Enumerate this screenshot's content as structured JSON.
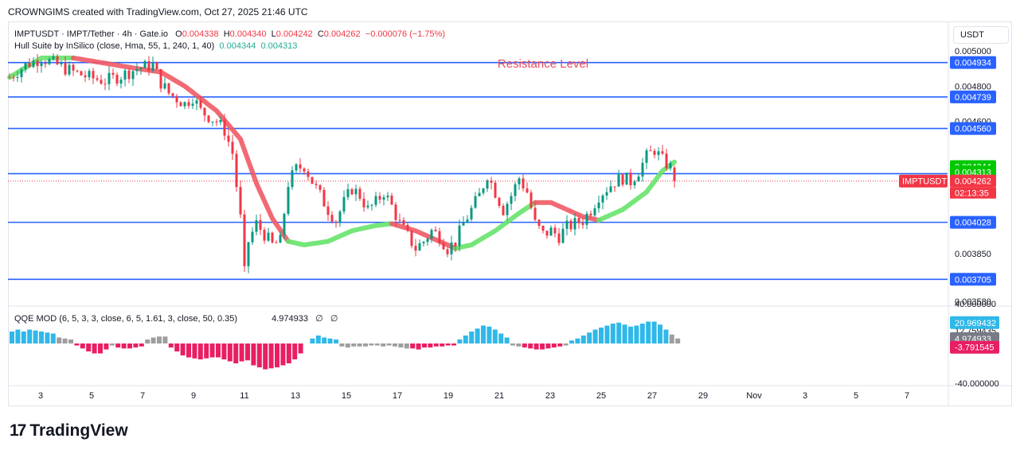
{
  "header": {
    "created_by": "CROWNGIMS created with TradingView.com, Oct 27, 2025 21:46 UTC"
  },
  "legend": {
    "symbol_line": "IMPTUSDT · IMPT/Tether · 4h · Gate.io",
    "o_label": "O",
    "o_value": "0.004338",
    "h_label": "H",
    "h_value": "0.004340",
    "l_label": "L",
    "l_value": "0.004242",
    "c_label": "C",
    "c_value": "0.004262",
    "change": "−0.000076 (−1.75%)",
    "indicator": "Hull Suite by InSilico (close, Hma, 55, 1, 240, 1, 40)",
    "hull_value_1": "0.004344",
    "hull_value_2": "0.004313"
  },
  "qqe_legend": {
    "title": "QQE MOD (6, 5, 3, 3, close, 6, 5, 1.61, 3, close, 50, 0.35)",
    "value": "4.974933",
    "na1": "∅",
    "na2": "∅"
  },
  "price_axis": {
    "unit": "USDT"
  },
  "annotations": {
    "resistance_text": "Resistance Level"
  },
  "footer": {
    "brand": "TradingView"
  },
  "colors": {
    "level_line": "#2962ff",
    "bull": "#089981",
    "bear": "#f23645",
    "hull_up": "#66e36a",
    "hull_down": "#f05a65",
    "qqe_up": "#2fb8e9",
    "qqe_down": "#e91e63",
    "qqe_neutral": "#9e9e9e",
    "resistance_text": "#e84a5f"
  },
  "chart_data": {
    "type": "candlestick",
    "symbol": "IMPTUSDT",
    "timeframe": "4h",
    "y_axis": {
      "ylim": [
        0.00358,
        0.00502
      ],
      "tick_labels": [
        "0.005000",
        "0.004800",
        "0.004600",
        "0.003850",
        "0.003580"
      ],
      "tick_values": [
        0.005,
        0.0048,
        0.0046,
        0.00385,
        0.00358
      ]
    },
    "x_axis": {
      "tick_labels": [
        "3",
        "5",
        "7",
        "9",
        "11",
        "13",
        "15",
        "17",
        "19",
        "21",
        "23",
        "25",
        "27",
        "29",
        "Nov",
        "3",
        "5",
        "7"
      ]
    },
    "horizontal_levels": [
      {
        "value": 0.004934,
        "label": "0.004934"
      },
      {
        "value": 0.004739,
        "label": "0.004739"
      },
      {
        "value": 0.00456,
        "label": "0.004560"
      },
      {
        "value": 0.004304,
        "label": "0.004304"
      },
      {
        "value": 0.004028,
        "label": "0.004028"
      },
      {
        "value": 0.003705,
        "label": "0.003705"
      }
    ],
    "price_tags": [
      {
        "value": 0.004344,
        "label": "0.004344",
        "color": "#00c800"
      },
      {
        "value": 0.004313,
        "label": "0.004313",
        "color": "#00c800"
      },
      {
        "value": 0.004262,
        "label": "0.004262",
        "color": "#f23645"
      }
    ],
    "last_price_tag": {
      "symbol": "IMPTUSDT",
      "value": 0.004262,
      "label": "0.004262",
      "countdown": "02:13:35"
    },
    "price_path": [
      [
        0,
        0.00485
      ],
      [
        2,
        0.00492
      ],
      [
        4,
        0.00496
      ],
      [
        6,
        0.00492
      ],
      [
        8,
        0.00488
      ],
      [
        10,
        0.00485
      ],
      [
        12,
        0.00483
      ],
      [
        14,
        0.00486
      ],
      [
        16,
        0.0049
      ],
      [
        18,
        0.00492
      ],
      [
        19,
        0.00482
      ],
      [
        20,
        0.00476
      ],
      [
        22,
        0.0047
      ],
      [
        23,
        0.00474
      ],
      [
        24,
        0.00466
      ],
      [
        26,
        0.0046
      ],
      [
        27,
        0.00455
      ],
      [
        28,
        0.00442
      ],
      [
        29,
        0.00405
      ],
      [
        29.5,
        0.00374
      ],
      [
        30,
        0.00392
      ],
      [
        31,
        0.00402
      ],
      [
        32,
        0.00396
      ],
      [
        33,
        0.0039
      ],
      [
        34,
        0.00392
      ],
      [
        35,
        0.00425
      ],
      [
        36,
        0.00433
      ],
      [
        37,
        0.00435
      ],
      [
        38,
        0.00426
      ],
      [
        39,
        0.00418
      ],
      [
        40,
        0.0041
      ],
      [
        41,
        0.00404
      ],
      [
        42,
        0.00414
      ],
      [
        43,
        0.00422
      ],
      [
        44,
        0.00418
      ],
      [
        45,
        0.0041
      ],
      [
        46,
        0.00414
      ],
      [
        47,
        0.0042
      ],
      [
        48,
        0.00412
      ],
      [
        49,
        0.00402
      ],
      [
        50,
        0.00395
      ],
      [
        51,
        0.00388
      ],
      [
        52,
        0.00392
      ],
      [
        53,
        0.00398
      ],
      [
        54,
        0.00395
      ],
      [
        55,
        0.00388
      ],
      [
        56,
        0.00392
      ],
      [
        57,
        0.00402
      ],
      [
        58,
        0.0041
      ],
      [
        59,
        0.00418
      ],
      [
        60,
        0.0043
      ],
      [
        61,
        0.0042
      ],
      [
        62,
        0.0041
      ],
      [
        63,
        0.00418
      ],
      [
        64,
        0.00428
      ],
      [
        65,
        0.0042
      ],
      [
        66,
        0.00402
      ],
      [
        67,
        0.00396
      ],
      [
        68,
        0.00398
      ],
      [
        69,
        0.00395
      ],
      [
        70,
        0.004
      ],
      [
        71,
        0.00402
      ],
      [
        72,
        0.00404
      ],
      [
        73,
        0.0041
      ],
      [
        74,
        0.00418
      ],
      [
        75,
        0.00422
      ],
      [
        76,
        0.00426
      ],
      [
        77,
        0.00428
      ],
      [
        78,
        0.00426
      ],
      [
        79,
        0.00432
      ],
      [
        80,
        0.0044
      ],
      [
        81,
        0.00444
      ],
      [
        82,
        0.00438
      ],
      [
        83,
        0.00434
      ],
      [
        83.5,
        0.00426
      ]
    ],
    "hull_path": [
      [
        0,
        0.00485
      ],
      [
        4,
        0.00496
      ],
      [
        8,
        0.00496
      ],
      [
        12,
        0.00493
      ],
      [
        16,
        0.0049
      ],
      [
        19,
        0.00488
      ],
      [
        22,
        0.0048
      ],
      [
        26,
        0.00466
      ],
      [
        29,
        0.0045
      ],
      [
        31,
        0.00425
      ],
      [
        33,
        0.00405
      ],
      [
        35,
        0.00392
      ],
      [
        37,
        0.0039
      ],
      [
        40,
        0.00392
      ],
      [
        43,
        0.00398
      ],
      [
        46,
        0.00401
      ],
      [
        48,
        0.00402
      ],
      [
        51,
        0.00398
      ],
      [
        54,
        0.00392
      ],
      [
        56,
        0.00388
      ],
      [
        58,
        0.0039
      ],
      [
        61,
        0.00398
      ],
      [
        64,
        0.00408
      ],
      [
        66,
        0.00414
      ],
      [
        68,
        0.00414
      ],
      [
        70,
        0.0041
      ],
      [
        72,
        0.00406
      ],
      [
        74,
        0.00404
      ],
      [
        77,
        0.0041
      ],
      [
        80,
        0.0042
      ],
      [
        82,
        0.00432
      ],
      [
        83.5,
        0.00437
      ]
    ],
    "hull_segments": [
      {
        "from": 0,
        "to": 8,
        "trend": "up"
      },
      {
        "from": 8,
        "to": 35,
        "trend": "down"
      },
      {
        "from": 35,
        "to": 48,
        "trend": "up"
      },
      {
        "from": 48,
        "to": 56,
        "trend": "down"
      },
      {
        "from": 56,
        "to": 66,
        "trend": "up"
      },
      {
        "from": 66,
        "to": 74,
        "trend": "down"
      },
      {
        "from": 74,
        "to": 83.5,
        "trend": "up"
      }
    ],
    "qqe": {
      "ylim": [
        -40,
        40
      ],
      "tick_labels": [
        "40.000000",
        "12.759435",
        "-40.000000"
      ],
      "tick_values": [
        40,
        12.759435,
        -40
      ],
      "value_tags": [
        {
          "value": 20.969432,
          "label": "20.969432",
          "color": "#2fb8e9"
        },
        {
          "value": 4.974933,
          "label": "4.974933",
          "color": "#787b86"
        },
        {
          "value": -3.791545,
          "label": "-3.791545",
          "color": "#e91e63"
        }
      ],
      "bars": [
        [
          12,
          1
        ],
        [
          14,
          1
        ],
        [
          12,
          1
        ],
        [
          14,
          1
        ],
        [
          13,
          1
        ],
        [
          12,
          1
        ],
        [
          11,
          1
        ],
        [
          10,
          1
        ],
        [
          6,
          0
        ],
        [
          5,
          0
        ],
        [
          4,
          0
        ],
        [
          -2,
          2
        ],
        [
          -5,
          2
        ],
        [
          -8,
          2
        ],
        [
          -10,
          2
        ],
        [
          -10,
          2
        ],
        [
          -6,
          2
        ],
        [
          -2,
          0
        ],
        [
          -4,
          2
        ],
        [
          -5,
          2
        ],
        [
          -5,
          2
        ],
        [
          -4,
          2
        ],
        [
          -3,
          2
        ],
        [
          4,
          0
        ],
        [
          6,
          0
        ],
        [
          7,
          0
        ],
        [
          7,
          0
        ],
        [
          -4,
          2
        ],
        [
          -8,
          2
        ],
        [
          -12,
          2
        ],
        [
          -14,
          2
        ],
        [
          -15,
          2
        ],
        [
          -16,
          2
        ],
        [
          -15,
          2
        ],
        [
          -14,
          2
        ],
        [
          -14,
          2
        ],
        [
          -16,
          2
        ],
        [
          -18,
          2
        ],
        [
          -20,
          2
        ],
        [
          -18,
          2
        ],
        [
          -17,
          2
        ],
        [
          -22,
          2
        ],
        [
          -24,
          2
        ],
        [
          -26,
          2
        ],
        [
          -25,
          2
        ],
        [
          -24,
          2
        ],
        [
          -22,
          2
        ],
        [
          -20,
          2
        ],
        [
          -16,
          2
        ],
        [
          -10,
          2
        ],
        [
          0,
          0
        ],
        [
          5,
          1
        ],
        [
          8,
          1
        ],
        [
          6,
          1
        ],
        [
          5,
          1
        ],
        [
          4,
          1
        ],
        [
          -3,
          0
        ],
        [
          -4,
          0
        ],
        [
          -3,
          0
        ],
        [
          -3,
          0
        ],
        [
          -3,
          0
        ],
        [
          -2,
          0
        ],
        [
          -2,
          0
        ],
        [
          -3,
          0
        ],
        [
          -2,
          0
        ],
        [
          -3,
          0
        ],
        [
          -4,
          0
        ],
        [
          -5,
          0
        ],
        [
          -5,
          2
        ],
        [
          -6,
          2
        ],
        [
          -4,
          2
        ],
        [
          -4,
          2
        ],
        [
          -3,
          2
        ],
        [
          -3,
          2
        ],
        [
          -2,
          2
        ],
        [
          -2,
          2
        ],
        [
          4,
          1
        ],
        [
          8,
          1
        ],
        [
          12,
          1
        ],
        [
          15,
          1
        ],
        [
          18,
          1
        ],
        [
          17,
          1
        ],
        [
          14,
          1
        ],
        [
          10,
          1
        ],
        [
          6,
          1
        ],
        [
          -2,
          0
        ],
        [
          -3,
          0
        ],
        [
          -4,
          2
        ],
        [
          -5,
          2
        ],
        [
          -6,
          2
        ],
        [
          -6,
          2
        ],
        [
          -5,
          2
        ],
        [
          -4,
          2
        ],
        [
          -3,
          2
        ],
        [
          -2,
          0
        ],
        [
          3,
          1
        ],
        [
          5,
          1
        ],
        [
          8,
          1
        ],
        [
          11,
          1
        ],
        [
          14,
          1
        ],
        [
          16,
          1
        ],
        [
          18,
          1
        ],
        [
          20,
          1
        ],
        [
          21,
          1
        ],
        [
          19,
          1
        ],
        [
          17,
          1
        ],
        [
          18,
          1
        ],
        [
          20,
          1
        ],
        [
          22,
          1
        ],
        [
          22,
          1
        ],
        [
          19,
          1
        ],
        [
          14,
          1
        ],
        [
          9,
          0
        ],
        [
          5,
          0
        ]
      ]
    }
  }
}
